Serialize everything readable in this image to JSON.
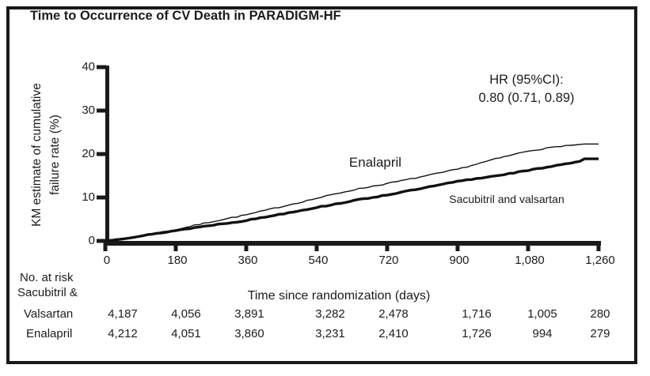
{
  "title": "Time to Occurrence of CV Death in PARADIGM-HF",
  "annotation": {
    "line1": "HR (95%CI):",
    "line2": "0.80 (0.71, 0.89)"
  },
  "chart_data": {
    "type": "line",
    "subtype": "kaplan-meier",
    "title": "Time to Occurrence of CV Death in PARADIGM-HF",
    "xlabel": "Time since randomization (days)",
    "ylabel": "KM estimate of cumulative failure rate (%)",
    "ylabel_line1": "KM estimate of cumulative",
    "ylabel_line2": "failure rate (%)",
    "xlim": [
      0,
      1260
    ],
    "ylim": [
      0,
      40
    ],
    "x_ticks": [
      0,
      180,
      360,
      540,
      720,
      900,
      1080,
      1260
    ],
    "x_tick_labels": [
      "0",
      "180",
      "360",
      "540",
      "720",
      "900",
      "1,080",
      "1,260"
    ],
    "y_ticks": [
      0,
      10,
      20,
      30,
      40
    ],
    "y_tick_labels": [
      "0",
      "10",
      "20",
      "30",
      "40"
    ],
    "grid": false,
    "legend_position": "inline-curve-labels",
    "annotation": "HR (95%CI): 0.80 (0.71, 0.89)",
    "x": [
      0,
      90,
      180,
      270,
      360,
      450,
      540,
      630,
      720,
      810,
      900,
      990,
      1080,
      1170,
      1260
    ],
    "series": [
      {
        "name": "Enalapril",
        "line_weight": "thin",
        "color": "#111111",
        "values": [
          0,
          1.2,
          2.6,
          4.4,
          6.0,
          7.9,
          9.8,
          11.7,
          13.2,
          14.8,
          16.5,
          18.7,
          20.7,
          21.9,
          22.3
        ]
      },
      {
        "name": "Sacubitril and valsartan",
        "line_weight": "thick",
        "color": "#111111",
        "values": [
          0,
          1.1,
          2.4,
          3.6,
          4.7,
          6.2,
          7.7,
          9.2,
          10.6,
          12.1,
          13.7,
          14.9,
          16.2,
          17.7,
          18.9
        ]
      }
    ]
  },
  "risk_table": {
    "header": "No. at risk",
    "row1_label_line1": "Sacubitril &",
    "row1_label_line2": "Valsartan",
    "row2_label": "Enalapril",
    "rows": [
      {
        "label": "Sacubitril & Valsartan",
        "values": [
          "4,187",
          "4,056",
          "3,891",
          "3,282",
          "2,478",
          "1,716",
          "1,005",
          "280"
        ]
      },
      {
        "label": "Enalapril",
        "values": [
          "4,212",
          "4,051",
          "3,860",
          "3,231",
          "2,410",
          "1,726",
          "994",
          "279"
        ]
      }
    ]
  },
  "colors": {
    "ink": "#1a1a1a",
    "background": "#ffffff"
  }
}
